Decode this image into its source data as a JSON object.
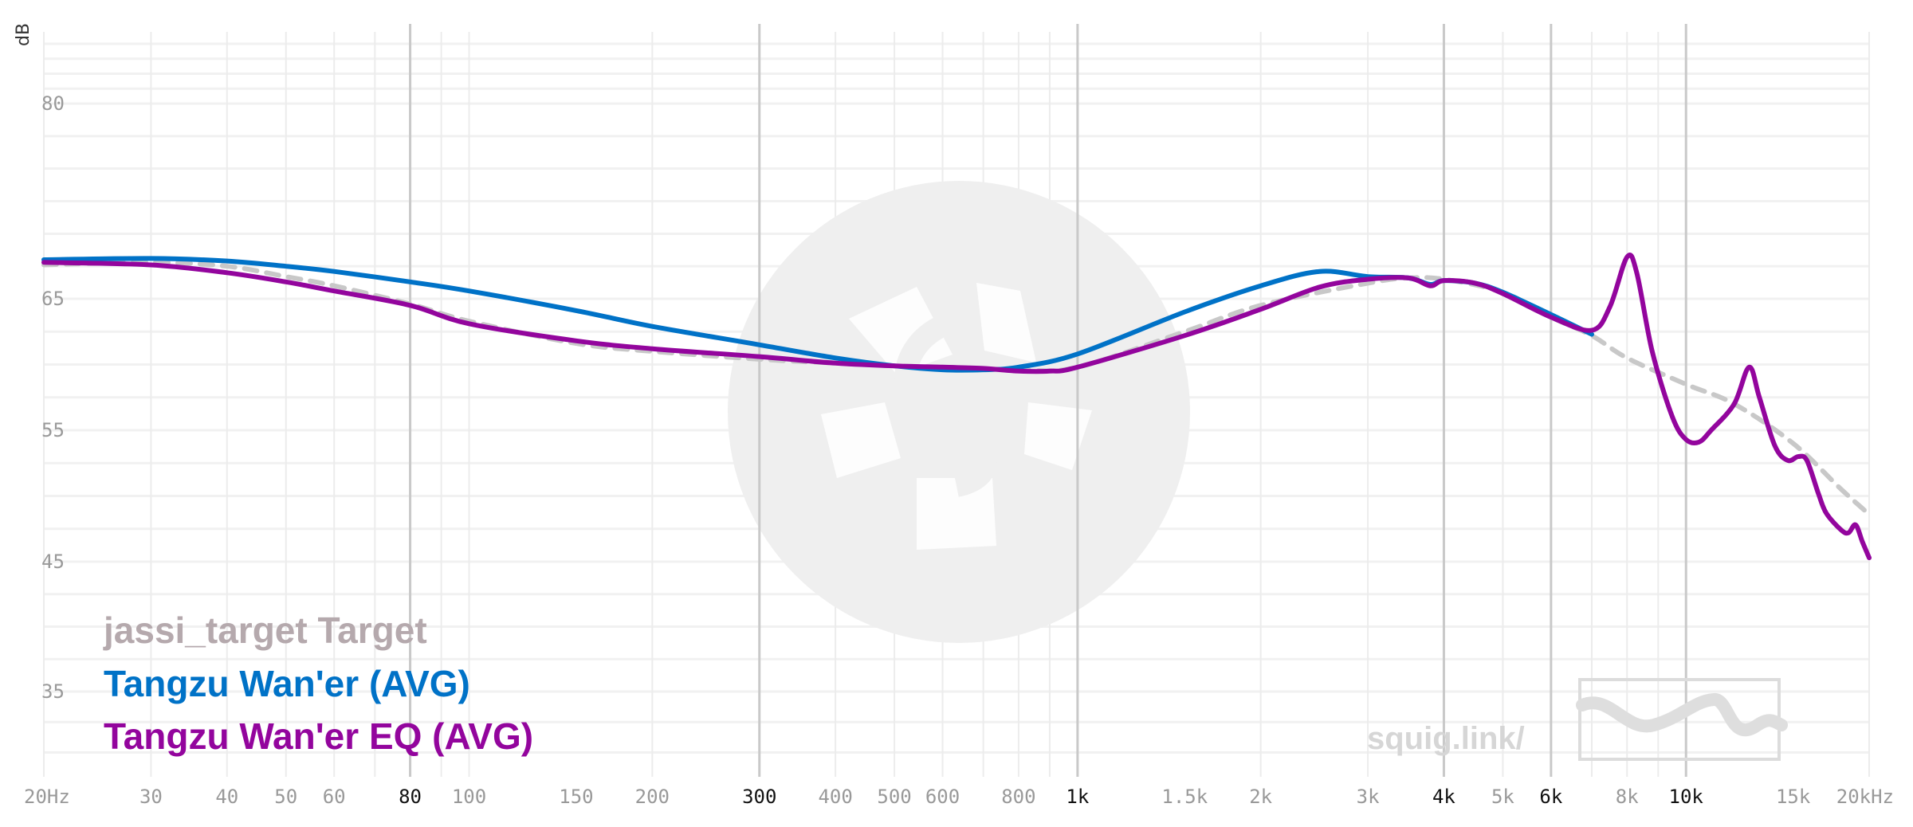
{
  "chart_data": {
    "type": "line",
    "unit_label": "dB",
    "x_scale": "log",
    "xlim": [
      20,
      20000
    ],
    "ylim": [
      28,
      92
    ],
    "x_ticks": [
      {
        "value": 20,
        "label": "20Hz",
        "major": false
      },
      {
        "value": 30,
        "label": "30",
        "major": false
      },
      {
        "value": 40,
        "label": "40",
        "major": false
      },
      {
        "value": 50,
        "label": "50",
        "major": false
      },
      {
        "value": 60,
        "label": "60",
        "major": false
      },
      {
        "value": 80,
        "label": "80",
        "major": true
      },
      {
        "value": 100,
        "label": "100",
        "major": false
      },
      {
        "value": 150,
        "label": "150",
        "major": false
      },
      {
        "value": 200,
        "label": "200",
        "major": false
      },
      {
        "value": 300,
        "label": "300",
        "major": true
      },
      {
        "value": 400,
        "label": "400",
        "major": false
      },
      {
        "value": 500,
        "label": "500",
        "major": false
      },
      {
        "value": 600,
        "label": "600",
        "major": false
      },
      {
        "value": 800,
        "label": "800",
        "major": false
      },
      {
        "value": 1000,
        "label": "1k",
        "major": true
      },
      {
        "value": 1500,
        "label": "1.5k",
        "major": false
      },
      {
        "value": 2000,
        "label": "2k",
        "major": false
      },
      {
        "value": 3000,
        "label": "3k",
        "major": false
      },
      {
        "value": 4000,
        "label": "4k",
        "major": true
      },
      {
        "value": 5000,
        "label": "5k",
        "major": false
      },
      {
        "value": 6000,
        "label": "6k",
        "major": true
      },
      {
        "value": 8000,
        "label": "8k",
        "major": false
      },
      {
        "value": 10000,
        "label": "10k",
        "major": true
      },
      {
        "value": 15000,
        "label": "15k",
        "major": false
      },
      {
        "value": 20000,
        "label": "20kHz",
        "major": false
      }
    ],
    "y_ticks": [
      {
        "value": 80,
        "label": "80"
      },
      {
        "value": 65,
        "label": "65"
      },
      {
        "value": 55,
        "label": "55"
      },
      {
        "value": 45,
        "label": "45"
      },
      {
        "value": 35,
        "label": "35"
      }
    ],
    "grid": true,
    "legend_position": "bottom-left",
    "series": [
      {
        "name": "jassi_target Target",
        "color": "#b5a9ad",
        "line_color": "#c8c8c8",
        "dashed": true,
        "points": [
          [
            20,
            67.6
          ],
          [
            30,
            67.8
          ],
          [
            40,
            67.5
          ],
          [
            50,
            66.7
          ],
          [
            60,
            66
          ],
          [
            80,
            64.6
          ],
          [
            100,
            63.3
          ],
          [
            150,
            61.6
          ],
          [
            200,
            61
          ],
          [
            300,
            60.4
          ],
          [
            400,
            60.1
          ],
          [
            500,
            59.9
          ],
          [
            600,
            59.8
          ],
          [
            800,
            59.6
          ],
          [
            1000,
            59.8
          ],
          [
            1500,
            62.5
          ],
          [
            2000,
            64.5
          ],
          [
            3000,
            66.2
          ],
          [
            3500,
            66.6
          ],
          [
            4000,
            66.5
          ],
          [
            5000,
            65.5
          ],
          [
            6000,
            63.6
          ],
          [
            7000,
            62.2
          ],
          [
            8000,
            60.5
          ],
          [
            10000,
            58.5
          ],
          [
            12000,
            57
          ],
          [
            15000,
            54
          ],
          [
            18000,
            50.5
          ],
          [
            20000,
            48.6
          ]
        ]
      },
      {
        "name": "Tangzu Wan'er (AVG)",
        "color": "#0072c7",
        "line_color": "#0072c7",
        "dashed": false,
        "points": [
          [
            20,
            68
          ],
          [
            30,
            68.1
          ],
          [
            40,
            67.9
          ],
          [
            50,
            67.5
          ],
          [
            60,
            67.1
          ],
          [
            80,
            66.3
          ],
          [
            100,
            65.6
          ],
          [
            150,
            64.1
          ],
          [
            200,
            62.9
          ],
          [
            300,
            61.5
          ],
          [
            400,
            60.5
          ],
          [
            500,
            59.9
          ],
          [
            600,
            59.6
          ],
          [
            700,
            59.6
          ],
          [
            800,
            59.8
          ],
          [
            1000,
            60.8
          ],
          [
            1500,
            64
          ],
          [
            2000,
            66
          ],
          [
            2500,
            67.1
          ],
          [
            3000,
            66.7
          ],
          [
            3500,
            66.6
          ],
          [
            3800,
            66.1
          ],
          [
            4000,
            66.4
          ],
          [
            4500,
            66.2
          ],
          [
            5000,
            65.5
          ],
          [
            6000,
            63.8
          ],
          [
            7000,
            62.3
          ]
        ]
      },
      {
        "name": "Tangzu Wan'er EQ (AVG)",
        "color": "#93059d",
        "line_color": "#93059d",
        "dashed": false,
        "points": [
          [
            20,
            67.8
          ],
          [
            30,
            67.6
          ],
          [
            40,
            67
          ],
          [
            50,
            66.3
          ],
          [
            60,
            65.6
          ],
          [
            80,
            64.5
          ],
          [
            100,
            63.1
          ],
          [
            150,
            61.8
          ],
          [
            200,
            61.2
          ],
          [
            300,
            60.6
          ],
          [
            400,
            60.1
          ],
          [
            500,
            59.9
          ],
          [
            600,
            59.8
          ],
          [
            700,
            59.7
          ],
          [
            800,
            59.5
          ],
          [
            900,
            59.5
          ],
          [
            1000,
            59.8
          ],
          [
            1500,
            62.2
          ],
          [
            2000,
            64.2
          ],
          [
            2500,
            65.9
          ],
          [
            3000,
            66.5
          ],
          [
            3500,
            66.6
          ],
          [
            3800,
            66
          ],
          [
            4000,
            66.4
          ],
          [
            4500,
            66.2
          ],
          [
            5000,
            65.4
          ],
          [
            6000,
            63.6
          ],
          [
            7000,
            62.6
          ],
          [
            7500,
            64.4
          ],
          [
            8000,
            68.2
          ],
          [
            8300,
            67
          ],
          [
            8800,
            61
          ],
          [
            9500,
            56
          ],
          [
            10000,
            54.3
          ],
          [
            10500,
            54.1
          ],
          [
            11000,
            55
          ],
          [
            12000,
            57
          ],
          [
            12700,
            59.8
          ],
          [
            13200,
            57.5
          ],
          [
            14000,
            53.8
          ],
          [
            14700,
            52.7
          ],
          [
            15300,
            53
          ],
          [
            15800,
            52.7
          ],
          [
            16500,
            50.2
          ],
          [
            17000,
            48.7
          ],
          [
            18000,
            47.4
          ],
          [
            18500,
            47.2
          ],
          [
            19000,
            47.8
          ],
          [
            19500,
            46.5
          ],
          [
            20000,
            45.3
          ]
        ]
      }
    ]
  },
  "watermark": {
    "text": "squig.link/"
  }
}
